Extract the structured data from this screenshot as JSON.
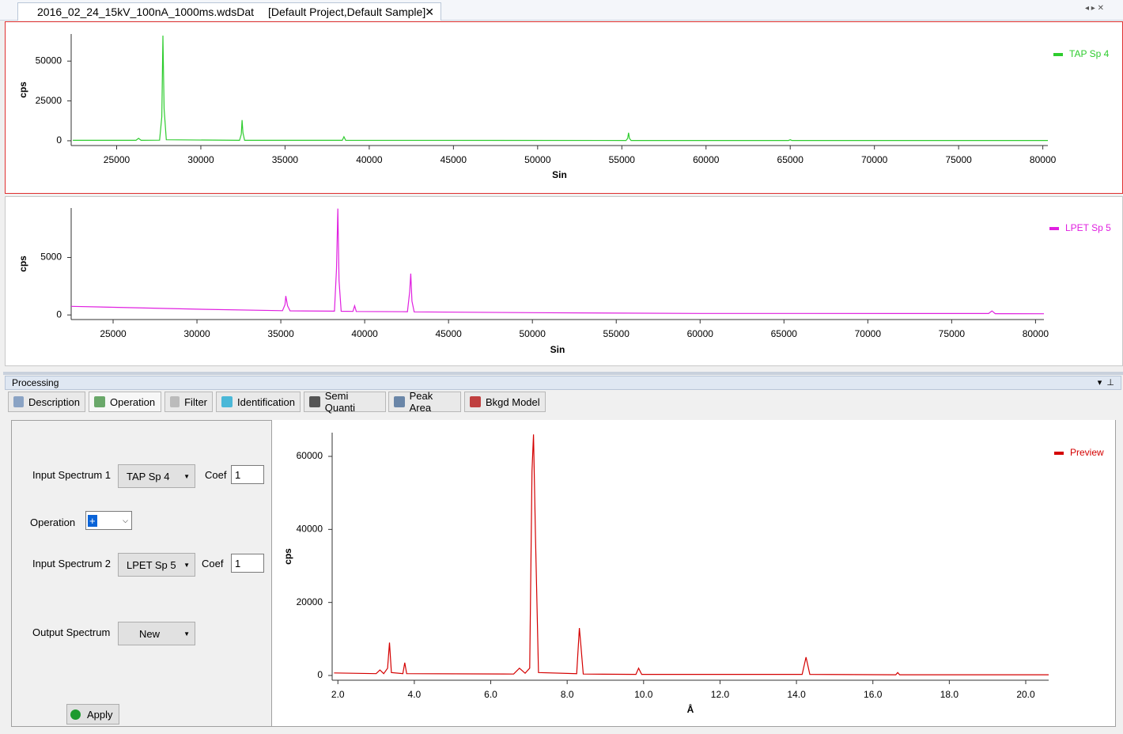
{
  "tab": {
    "title": "2016_02_24_15kV_100nA_1000ms.wdsDat",
    "context": "[Default Project,Default Sample]"
  },
  "panel": {
    "title": "Processing"
  },
  "tabs": [
    "Description",
    "Operation",
    "Filter",
    "Identification",
    "Semi Quanti",
    "Peak Area",
    "Bkgd Model"
  ],
  "form": {
    "input1_label": "Input Spectrum 1",
    "input1_value": "TAP Sp 4",
    "coef1_label": "Coef",
    "coef1_value": "1",
    "operation_label": "Operation",
    "operation_value": "+",
    "input2_label": "Input Spectrum 2",
    "input2_value": "LPET Sp 5",
    "coef2_label": "Coef",
    "coef2_value": "1",
    "output_label": "Output Spectrum",
    "output_value": "New",
    "apply": "Apply"
  },
  "chart_data": [
    {
      "type": "line",
      "x_label": "Sin",
      "y_label": "cps",
      "legend": "upper right",
      "xlim": [
        22300,
        80300
      ],
      "ylim": [
        -3000,
        67000
      ],
      "xticks": [
        25000,
        30000,
        35000,
        40000,
        45000,
        50000,
        55000,
        60000,
        65000,
        70000,
        75000,
        80000
      ],
      "yticks": [
        0,
        25000,
        50000
      ],
      "x": [
        22400,
        26150,
        26300,
        26450,
        27550,
        27680,
        27750,
        27820,
        27950,
        32300,
        32400,
        32450,
        32500,
        32600,
        38400,
        38500,
        38600,
        55250,
        55350,
        55400,
        55450,
        55550,
        64900,
        65000,
        65100,
        80300
      ],
      "series": [
        {
          "name": "TAP Sp 4",
          "color": "#2ecc2e",
          "values": [
            300,
            300,
            1500,
            300,
            400,
            15000,
            66000,
            20000,
            600,
            300,
            4000,
            13000,
            5000,
            300,
            300,
            2500,
            300,
            200,
            1500,
            5000,
            1500,
            200,
            200,
            600,
            200,
            200
          ]
        }
      ]
    },
    {
      "type": "line",
      "x_label": "Sin",
      "y_label": "cps",
      "legend": "upper right",
      "xlim": [
        22500,
        80500
      ],
      "ylim": [
        -400,
        9300
      ],
      "xticks": [
        25000,
        30000,
        35000,
        40000,
        45000,
        50000,
        55000,
        60000,
        65000,
        70000,
        75000,
        80000
      ],
      "yticks": [
        0,
        5000
      ],
      "x": [
        22500,
        30000,
        35100,
        35250,
        35300,
        35400,
        35550,
        38200,
        38320,
        38400,
        38470,
        38600,
        39300,
        39400,
        39500,
        42550,
        42680,
        42750,
        42820,
        42950,
        50000,
        60000,
        77200,
        77400,
        77600,
        80500
      ],
      "series": [
        {
          "name": "LPET Sp 5",
          "color": "#e020e0",
          "values": [
            750,
            500,
            370,
            900,
            1650,
            800,
            360,
            330,
            4000,
            9250,
            3000,
            320,
            310,
            800,
            300,
            280,
            2000,
            3600,
            1200,
            270,
            200,
            130,
            120,
            350,
            110,
            100
          ]
        }
      ]
    },
    {
      "type": "line",
      "x_label": "Å",
      "y_label": "cps",
      "legend": "upper right",
      "xlim": [
        1.85,
        20.6
      ],
      "ylim": [
        -1300,
        66500
      ],
      "xticks": [
        {
          "value": 2,
          "label": "2.0"
        },
        {
          "value": 4,
          "label": "4.0"
        },
        {
          "value": 6,
          "label": "6.0"
        },
        {
          "value": 8,
          "label": "8.0"
        },
        {
          "value": 10,
          "label": "10.0"
        },
        {
          "value": 12,
          "label": "12.0"
        },
        {
          "value": 14,
          "label": "14.0"
        },
        {
          "value": 16,
          "label": "16.0"
        },
        {
          "value": 18,
          "label": "18.0"
        },
        {
          "value": 20,
          "label": "20.0"
        }
      ],
      "yticks": [
        0,
        20000,
        40000,
        60000
      ],
      "x": [
        1.9,
        3.0,
        3.1,
        3.2,
        3.3,
        3.35,
        3.4,
        3.7,
        3.75,
        3.8,
        6.6,
        6.75,
        6.9,
        7.02,
        7.08,
        7.12,
        7.17,
        7.25,
        8.25,
        8.32,
        8.36,
        8.42,
        9.8,
        9.87,
        9.95,
        14.15,
        14.25,
        14.35,
        16.6,
        16.65,
        16.7,
        20.6
      ],
      "series": [
        {
          "name": "Preview",
          "color": "#d40000",
          "values": [
            700,
            500,
            1500,
            500,
            2000,
            9000,
            800,
            500,
            3500,
            500,
            400,
            2000,
            600,
            2000,
            56000,
            66000,
            38000,
            800,
            500,
            13000,
            8000,
            400,
            300,
            2000,
            300,
            300,
            5000,
            300,
            200,
            800,
            200,
            200
          ]
        }
      ]
    }
  ]
}
